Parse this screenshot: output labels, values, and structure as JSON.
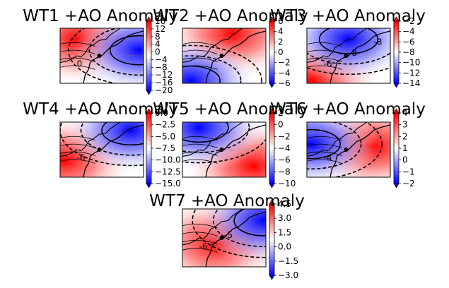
{
  "colors": {
    "low": "#0000ff",
    "mid": "#ffffff",
    "high": "#ff0000",
    "contour": "#000000",
    "gridline": "#9a9a9a"
  },
  "chart_data": [
    {
      "type": "heatmap",
      "title": "WT1 +AO Anomaly",
      "colorbar_ticks": [
        16,
        12,
        8,
        4,
        0,
        -4,
        -8,
        -12,
        -16,
        -20
      ],
      "colorbar_range": [
        -20,
        16
      ],
      "contour_labels": [
        "0"
      ],
      "pattern": {
        "high_x": 0.2,
        "high_y": 0.2,
        "low_x": 0.95,
        "low_y": 0.4,
        "bias": 0.05
      }
    },
    {
      "type": "heatmap",
      "title": "WT2 +AO Anomaly",
      "colorbar_ticks": [
        6,
        4,
        2,
        0,
        -2,
        -4,
        -6
      ],
      "colorbar_range": [
        -6,
        6
      ],
      "contour_labels": [],
      "pattern": {
        "high_x": 0.6,
        "high_y": 0.1,
        "low_x": 0.1,
        "low_y": 0.95,
        "bias": 0.0
      }
    },
    {
      "type": "heatmap",
      "title": "WT3 +AO Anomaly",
      "colorbar_ticks": [
        -2,
        -4,
        -6,
        -8,
        -10,
        -12,
        -14
      ],
      "colorbar_range": [
        -14,
        -2
      ],
      "contour_labels": [
        "-6",
        "-8",
        "-8"
      ],
      "pattern": {
        "high_x": 0.05,
        "high_y": 0.95,
        "low_x": 0.5,
        "low_y": 0.2,
        "bias": 0.0
      }
    },
    {
      "type": "heatmap",
      "title": "WT4 +AO Anomaly",
      "colorbar_ticks": [
        0.0,
        -2.5,
        -5.0,
        -7.5,
        -10.0,
        -12.5,
        -15.0
      ],
      "colorbar_range": [
        -15,
        0
      ],
      "contour_labels": [
        "-6"
      ],
      "pattern": {
        "high_x": 0.05,
        "high_y": 0.7,
        "low_x": 0.85,
        "low_y": 0.15,
        "bias": 0.15
      }
    },
    {
      "type": "heatmap",
      "title": "WT5 +AO Anomaly",
      "colorbar_ticks": [
        2,
        0,
        -2,
        -4,
        -6,
        -8,
        -10
      ],
      "colorbar_range": [
        -10,
        2
      ],
      "contour_labels": [],
      "pattern": {
        "high_x": 0.85,
        "high_y": 0.8,
        "low_x": 0.2,
        "low_y": 0.1,
        "bias": 0.0
      }
    },
    {
      "type": "heatmap",
      "title": "WT6 +AO Anomaly",
      "colorbar_ticks": [
        4,
        3,
        2,
        1,
        0,
        -1,
        -2
      ],
      "colorbar_range": [
        -2,
        4
      ],
      "contour_labels": [
        "-4"
      ],
      "pattern": {
        "high_x": 0.8,
        "high_y": 0.45,
        "low_x": 0.05,
        "low_y": 0.4,
        "bias": 0.05
      }
    },
    {
      "type": "heatmap",
      "title": "WT7 +AO Anomaly",
      "colorbar_ticks": [
        4.5,
        3.0,
        1.5,
        0.0,
        -1.5,
        -3.0
      ],
      "colorbar_range": [
        -3,
        4.5
      ],
      "contour_labels": [
        "-6",
        "-5"
      ],
      "pattern": {
        "high_x": 0.4,
        "high_y": 0.6,
        "low_x": 0.97,
        "low_y": 0.2,
        "bias": 0.25
      }
    }
  ]
}
